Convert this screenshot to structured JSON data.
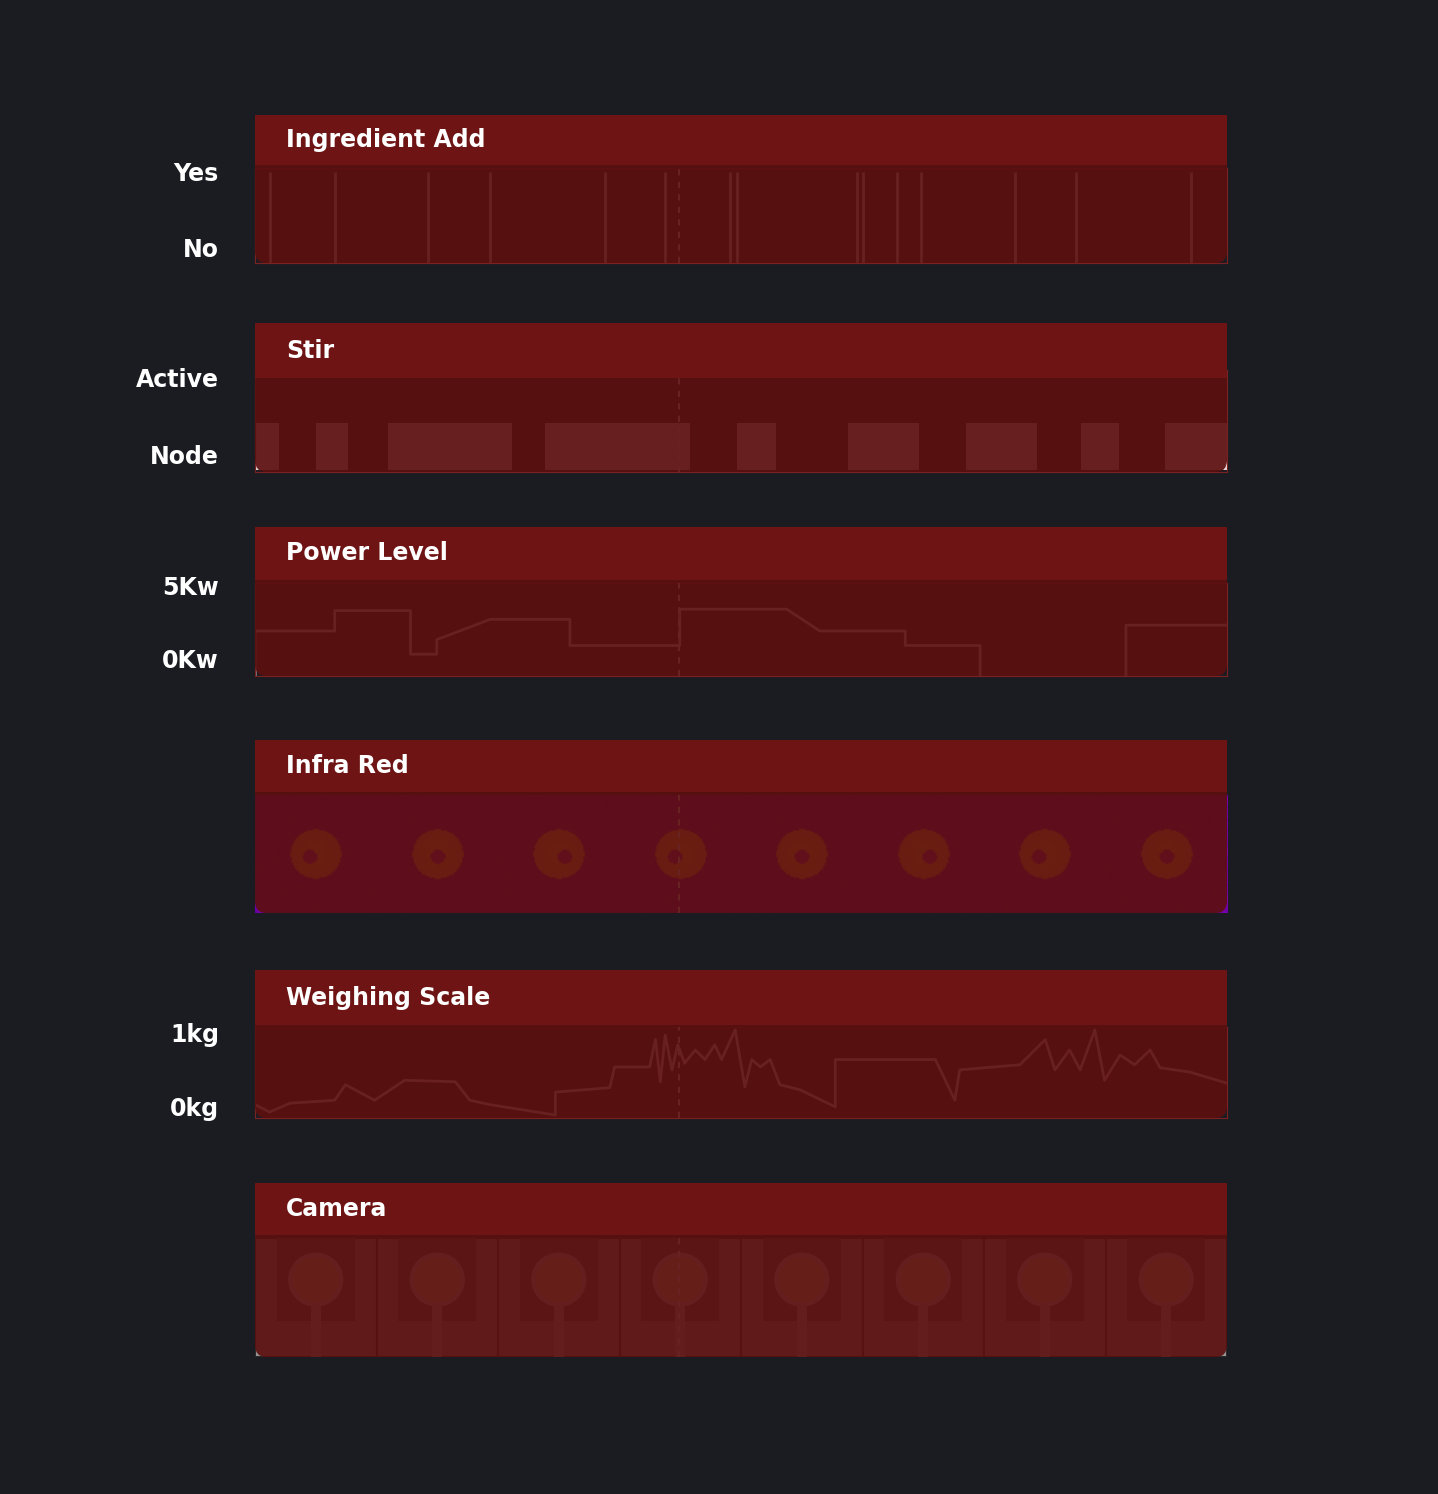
{
  "chart_data": [
    {
      "type": "event",
      "title": "Ingredient Add",
      "color": "#f2eeee",
      "x": [
        1.5,
        8.2,
        17.8,
        24.2,
        36.0,
        42.2,
        48.9,
        49.6,
        61.9,
        62.6,
        66.0,
        68.5,
        78.2,
        84.5,
        96.3
      ],
      "values": [
        1,
        1,
        1,
        1,
        1,
        1,
        1,
        1,
        1,
        1,
        1,
        1,
        1,
        1,
        1
      ],
      "xlim": [
        0,
        100
      ],
      "ylim": [
        -0.2,
        1.05
      ],
      "yticks": [
        {
          "value": 1,
          "label": "Yes"
        },
        {
          "value": 0,
          "label": "No"
        }
      ],
      "tick_labels": "y",
      "cursor": 43.6
    },
    {
      "type": "interval_bar",
      "title": "Stir",
      "color": "#e6d7d7",
      "intervals": [
        [
          0,
          2.5
        ],
        [
          6.3,
          9.6
        ],
        [
          13.7,
          26.4
        ],
        [
          29.8,
          44.8
        ],
        [
          49.6,
          53.6
        ],
        [
          61.0,
          68.3
        ],
        [
          73.1,
          80.5
        ],
        [
          85.0,
          88.9
        ],
        [
          93.6,
          100
        ]
      ],
      "values": [
        0,
        0,
        0,
        0,
        0,
        0,
        0,
        0,
        0
      ],
      "xlim": [
        0,
        100
      ],
      "ylim": [
        -0.22,
        1.1
      ],
      "yticks": [
        {
          "value": 1,
          "label": "Active"
        },
        {
          "value": 0,
          "label": "Node"
        }
      ],
      "tick_labels": "y",
      "cursor": 43.6
    },
    {
      "type": "line",
      "title": "Power Level",
      "color": "#f5f0f0",
      "x": [
        0,
        0,
        8.2,
        8.2,
        16.0,
        16.0,
        18.7,
        18.7,
        24.2,
        32.4,
        32.4,
        43.7,
        43.7,
        54.7,
        58.1,
        66.9,
        66.9,
        74.6,
        74.6,
        81.8,
        89.6,
        89.6,
        100
      ],
      "values": [
        -1.2,
        1.9,
        1.9,
        3.3,
        3.3,
        0.3,
        0.3,
        1.3,
        2.7,
        2.7,
        0.9,
        0.9,
        3.4,
        3.4,
        1.9,
        1.9,
        0.9,
        0.9,
        -1.2,
        null,
        -1.2,
        2.3,
        2.3
      ],
      "xlim": [
        0,
        100
      ],
      "ylim": [
        -1.2,
        5.2
      ],
      "yticks": [
        {
          "value": 5,
          "label": "5Kw"
        },
        {
          "value": 0,
          "label": "0Kw"
        }
      ],
      "tick_labels": "y",
      "cursor": 43.6
    },
    {
      "type": "thermal_strip",
      "title": "Infra Red",
      "xlim": [
        0,
        100
      ],
      "tick_labels": false,
      "cursor": 43.6
    },
    {
      "type": "line",
      "title": "Weighing Scale",
      "color": "#f0eaea",
      "x": [
        0,
        1.5,
        3.6,
        8.2,
        9.3,
        12.3,
        15.4,
        20.6,
        22.1,
        24.2,
        30.9,
        30.9,
        36.5,
        37.0,
        40.6,
        41.2,
        41.7,
        42.2,
        42.9,
        43.5,
        44.2,
        45.3,
        46.3,
        47.3,
        48.0,
        49.4,
        50.4,
        51.1,
        52.0,
        53.0,
        54.0,
        56.1,
        59.7,
        59.7,
        70.0,
        72.0,
        72.5,
        78.7,
        81.3,
        82.3,
        83.8,
        84.9,
        86.4,
        87.4,
        89.0,
        90.5,
        92.1,
        93.1,
        96.2,
        100
      ],
      "values": [
        0.03,
        -0.07,
        0.05,
        0.09,
        0.3,
        0.09,
        0.36,
        0.34,
        0.09,
        0.03,
        -0.11,
        0.2,
        0.26,
        0.54,
        0.54,
        0.91,
        0.34,
        0.97,
        0.5,
        0.84,
        0.59,
        0.77,
        0.64,
        0.84,
        0.64,
        1.04,
        0.27,
        0.64,
        0.54,
        0.64,
        0.3,
        0.23,
        0,
        0.64,
        0.64,
        0.09,
        0.5,
        0.57,
        0.91,
        0.5,
        0.77,
        0.5,
        1.04,
        0.36,
        0.7,
        0.57,
        0.77,
        0.53,
        0.47,
        0.32
      ],
      "xlim": [
        0,
        100
      ],
      "ylim": [
        -0.15,
        1.08
      ],
      "yticks": [
        {
          "value": 1,
          "label": "1kg"
        },
        {
          "value": 0,
          "label": "0kg"
        }
      ],
      "tick_labels": "y",
      "cursor": 43.6
    },
    {
      "type": "camera_strip",
      "title": "Camera",
      "xlim": [
        0,
        100
      ],
      "tick_labels": false,
      "cursor": 43.6
    }
  ]
}
